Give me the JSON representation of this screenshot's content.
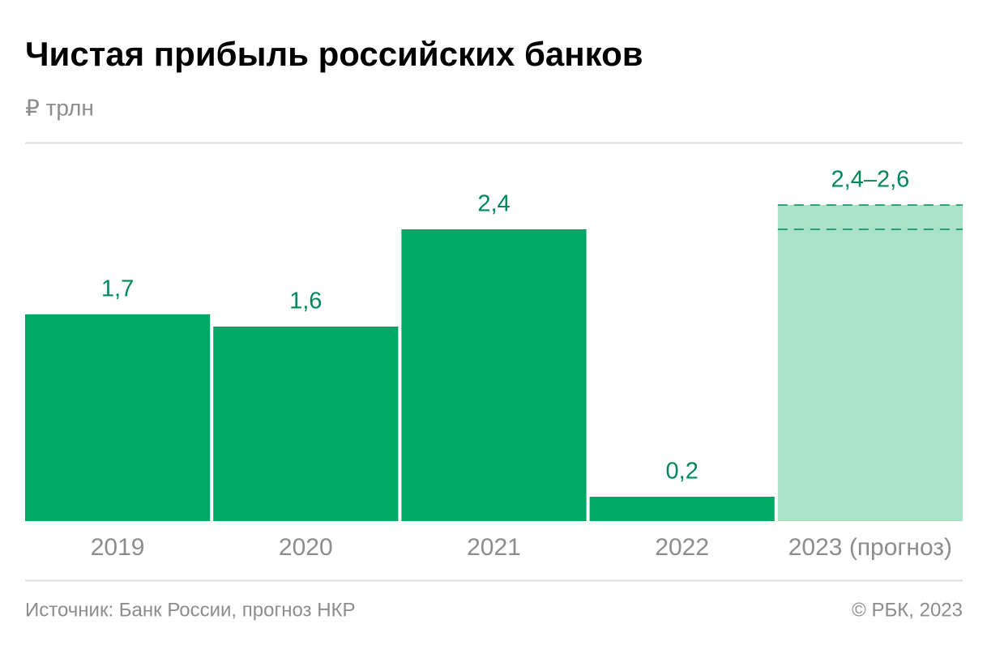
{
  "chart_data": {
    "type": "bar",
    "title": "Чистая прибыль российских банков",
    "subtitle": "₽ трлн",
    "categories": [
      "2019",
      "2020",
      "2021",
      "2022",
      "2023 (прогноз)"
    ],
    "values": [
      1.7,
      1.6,
      2.4,
      0.2,
      null
    ],
    "value_labels": [
      "1,7",
      "1,6",
      "2,4",
      "0,2",
      null
    ],
    "color": "#00a865",
    "forecast_low": [
      null,
      null,
      null,
      null,
      2.4
    ],
    "forecast_high": [
      null,
      null,
      null,
      null,
      2.6
    ],
    "forecast_labels": [
      null,
      null,
      null,
      null,
      "2,4–2,6"
    ],
    "forecast_color": "#a8e2c8",
    "ylim": [
      0,
      3.1
    ],
    "source": "Источник: Банк России, прогноз НКР",
    "copyright": "© РБК, 2023"
  }
}
